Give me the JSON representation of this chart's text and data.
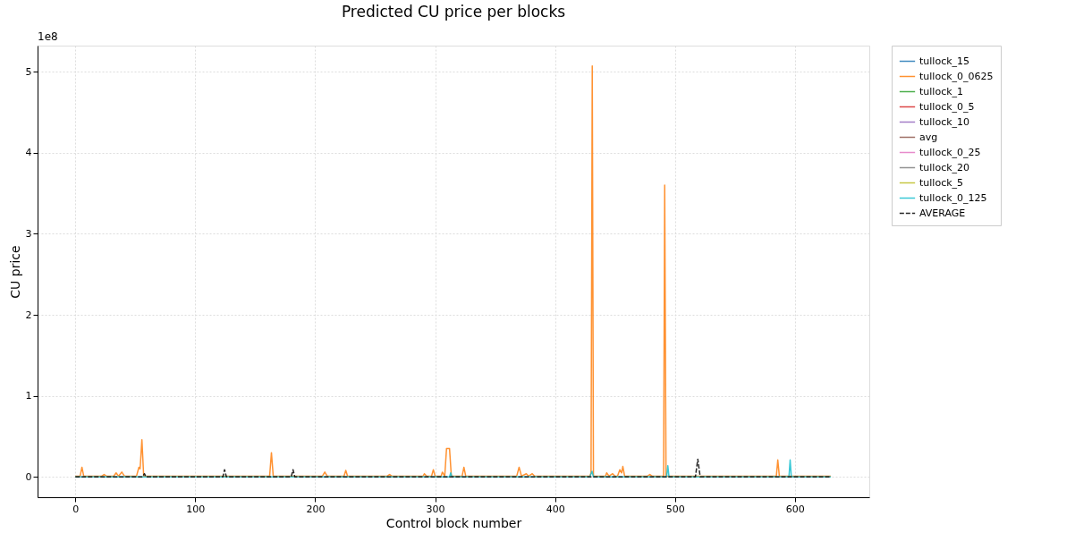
{
  "chart_data": {
    "type": "line",
    "title": "Predicted CU price per blocks",
    "xlabel": "Control block number",
    "ylabel": "CU price",
    "annotations": [
      "1e8"
    ],
    "xlim": [
      -31.5,
      662
    ],
    "ylim": [
      -0.25,
      5.32
    ],
    "xticks": [
      0,
      100,
      200,
      300,
      400,
      500,
      600
    ],
    "yticks": [
      0,
      1,
      2,
      3,
      4,
      5
    ],
    "grid": true,
    "legend": "right",
    "line_style": "solid",
    "marker": "none",
    "series": [
      {
        "name": "tullock_15",
        "color": "#1f77b4"
      },
      {
        "name": "tullock_0_0625",
        "color": "#ff7f0e",
        "x": [
          0,
          4,
          5.5,
          7,
          22,
          24,
          26,
          32,
          34,
          36,
          38.7,
          41,
          51,
          53,
          54,
          55.5,
          57,
          100,
          162,
          163.5,
          165,
          206,
          208,
          210,
          224,
          225.5,
          227,
          260,
          262,
          264,
          290,
          291,
          293,
          297,
          298.5,
          300,
          305,
          306,
          308,
          309.5,
          312,
          313.5,
          322.5,
          324,
          325.5,
          368,
          370,
          372,
          376,
          378,
          381,
          383,
          429,
          430,
          431,
          432,
          442,
          443,
          445,
          448,
          450,
          452,
          454,
          455.5,
          456.5,
          458,
          477,
          479,
          481,
          490.5,
          491.4,
          492.5,
          584.5,
          585.7,
          587,
          630
        ],
        "values": [
          0.01,
          0.01,
          0.12,
          0.01,
          0.01,
          0.03,
          0.01,
          0.01,
          0.05,
          0.01,
          0.06,
          0.01,
          0.01,
          0.12,
          0.1,
          0.46,
          0.01,
          0.01,
          0.01,
          0.3,
          0.01,
          0.01,
          0.06,
          0.01,
          0.01,
          0.08,
          0.01,
          0.01,
          0.03,
          0.01,
          0.01,
          0.04,
          0.01,
          0.01,
          0.09,
          0.01,
          0.01,
          0.06,
          0.01,
          0.35,
          0.35,
          0.01,
          0.01,
          0.12,
          0.01,
          0.01,
          0.12,
          0.01,
          0.04,
          0.01,
          0.04,
          0.01,
          0.01,
          0.05,
          5.07,
          0.01,
          0.01,
          0.05,
          0.01,
          0.04,
          0.01,
          0.01,
          0.09,
          0.05,
          0.13,
          0.01,
          0.01,
          0.03,
          0.01,
          0.01,
          3.6,
          0.01,
          0.01,
          0.21,
          0.01,
          0.01
        ]
      },
      {
        "name": "tullock_1",
        "color": "#2ca02c"
      },
      {
        "name": "tullock_0_5",
        "color": "#d62728"
      },
      {
        "name": "tullock_10",
        "color": "#9467bd"
      },
      {
        "name": "avg",
        "color": "#8c564b"
      },
      {
        "name": "tullock_0_25",
        "color": "#e377c2"
      },
      {
        "name": "tullock_20",
        "color": "#7f7f7f"
      },
      {
        "name": "tullock_5",
        "color": "#bcbd22"
      },
      {
        "name": "tullock_0_125",
        "color": "#17becf",
        "x": [
          0,
          312,
          313,
          314,
          429,
          430.8,
          432,
          493,
          494,
          495,
          595,
          596,
          597,
          630
        ],
        "values": [
          0,
          0,
          0.05,
          0,
          0,
          0.07,
          0,
          0,
          0.14,
          0,
          0,
          0.21,
          0,
          0
        ]
      },
      {
        "name": "AVERAGE",
        "color": "#000000",
        "line_style": "dashed",
        "x": [
          0,
          56,
          57.6,
          59,
          123,
          124.4,
          126,
          180,
          181.5,
          183,
          517,
          519,
          521,
          630
        ],
        "values": [
          0,
          0,
          0.04,
          0,
          0,
          0.09,
          0,
          0,
          0.09,
          0,
          0,
          0.22,
          0,
          0
        ]
      }
    ]
  }
}
